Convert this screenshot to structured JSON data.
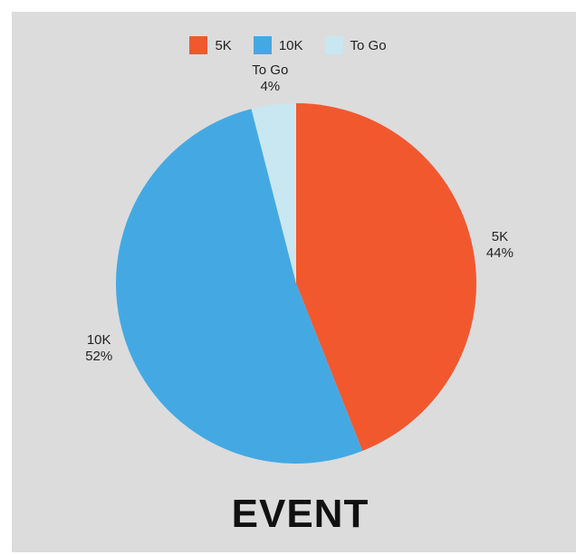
{
  "chart_data": {
    "type": "pie",
    "title": "EVENT",
    "categories": [
      "5K",
      "10K",
      "To Go"
    ],
    "values": [
      44,
      52,
      4
    ],
    "value_labels": [
      "44%",
      "52%",
      "4%"
    ],
    "colors": [
      "#f2582e",
      "#44a9e3",
      "#c8e7f0"
    ],
    "legend_position": "top"
  }
}
